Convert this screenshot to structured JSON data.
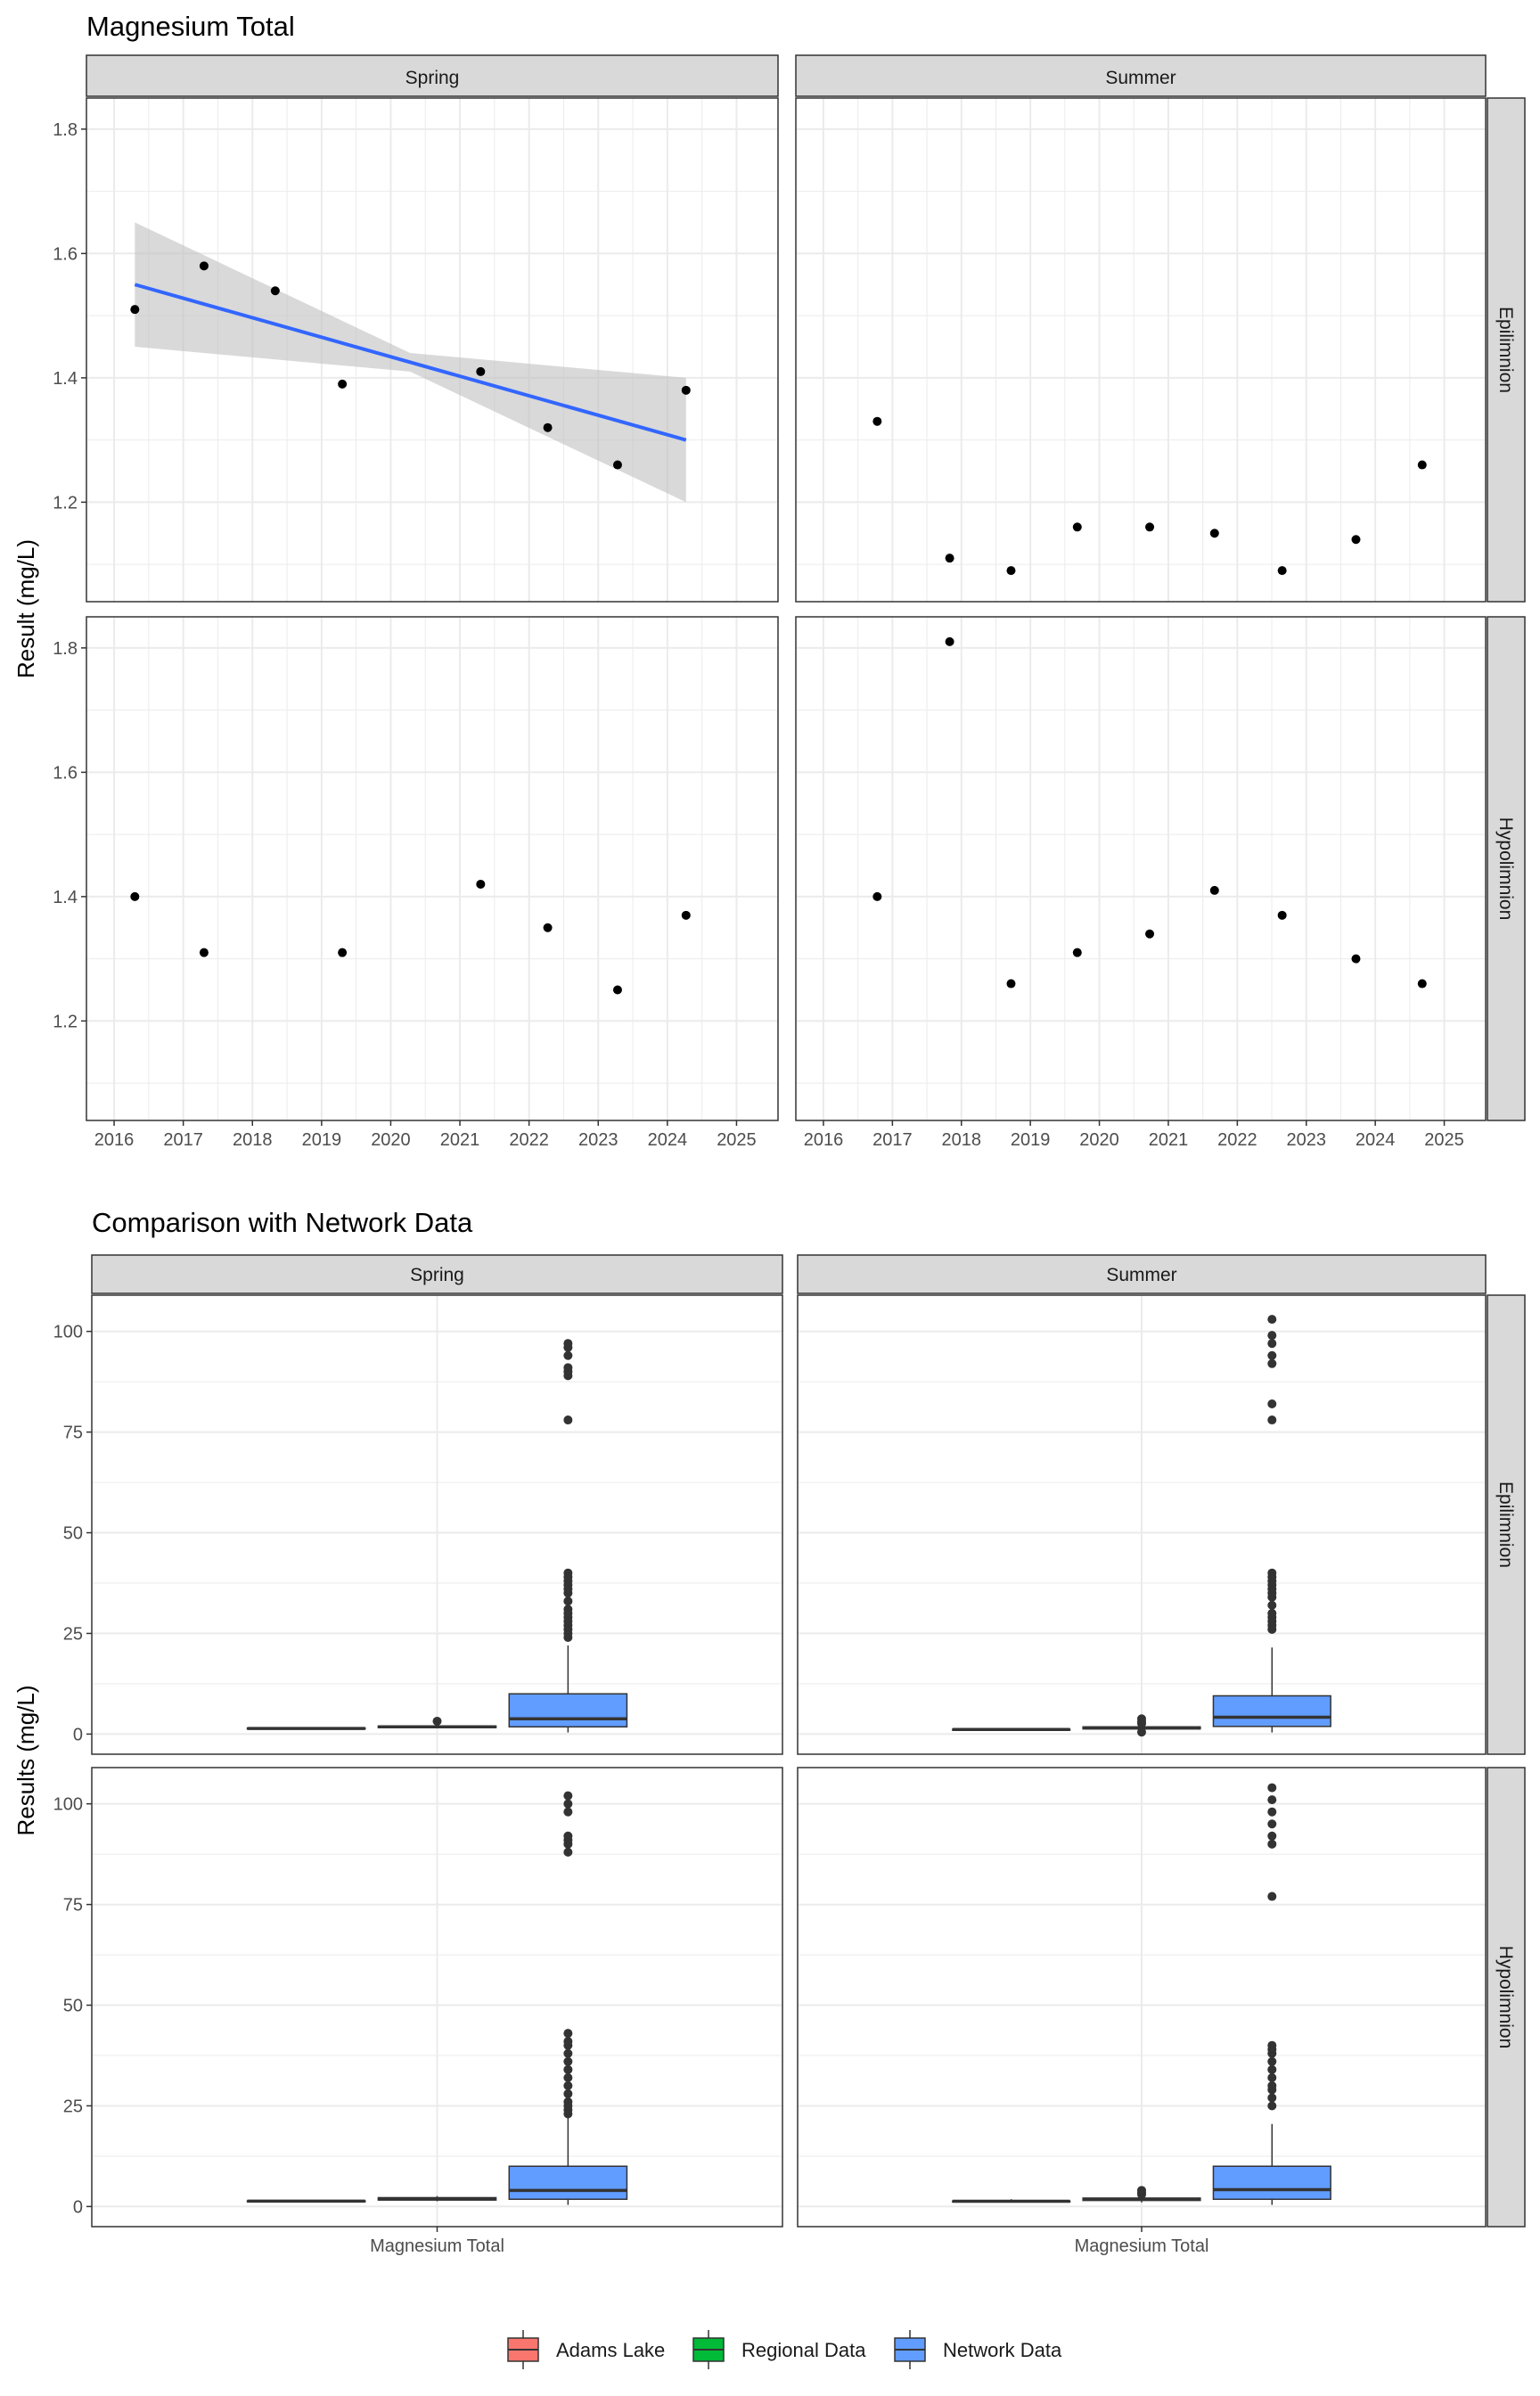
{
  "colors": {
    "panel_bg": "#ffffff",
    "grid": "#ebebeb",
    "strip_bg": "#d9d9d9",
    "border": "#333333",
    "point": "#000000",
    "trend_line": "#3366ff",
    "ribbon": "#bfbfbf",
    "axis_text": "#4d4d4d",
    "box_line": "#333333"
  },
  "chart_data": [
    {
      "type": "scatter",
      "title": "Magnesium Total",
      "ylabel": "Result (mg/L)",
      "xlabel": "",
      "col_facets": [
        "Spring",
        "Summer"
      ],
      "row_facets": [
        "Epilimnion",
        "Hypolimnion"
      ],
      "xlim": [
        2015.6,
        2025.6
      ],
      "ylim": [
        1.04,
        1.85
      ],
      "x_ticks": [
        2016,
        2017,
        2018,
        2019,
        2020,
        2021,
        2022,
        2023,
        2024,
        2025
      ],
      "x_tick_labels": [
        "2016",
        "2017",
        "2018",
        "2019",
        "2020",
        "2021",
        "2022",
        "2023",
        "2024",
        "2025"
      ],
      "y_ticks": [
        1.2,
        1.4,
        1.6,
        1.8
      ],
      "y_tick_labels": [
        "1.2",
        "1.4",
        "1.6",
        "1.8"
      ],
      "panels": [
        {
          "row": "Epilimnion",
          "col": "Spring",
          "points": [
            [
              2016.3,
              1.51
            ],
            [
              2017.3,
              1.58
            ],
            [
              2018.33,
              1.54
            ],
            [
              2019.3,
              1.39
            ],
            [
              2021.3,
              1.41
            ],
            [
              2022.27,
              1.32
            ],
            [
              2023.28,
              1.26
            ],
            [
              2024.27,
              1.38
            ]
          ],
          "trend": {
            "x": [
              2016.3,
              2024.27
            ],
            "y": [
              1.55,
              1.3
            ],
            "ci_lower": [
              1.45,
              1.2
            ],
            "ci_upper": [
              1.65,
              1.4
            ],
            "ci_mid": {
              "x": 2020.28,
              "lower": 1.41,
              "upper": 1.44
            }
          }
        },
        {
          "row": "Epilimnion",
          "col": "Summer",
          "points": [
            [
              2016.78,
              1.33
            ],
            [
              2017.83,
              1.11
            ],
            [
              2018.72,
              1.09
            ],
            [
              2019.68,
              1.16
            ],
            [
              2020.73,
              1.16
            ],
            [
              2021.67,
              1.15
            ],
            [
              2022.65,
              1.09
            ],
            [
              2023.72,
              1.14
            ],
            [
              2024.68,
              1.26
            ]
          ]
        },
        {
          "row": "Hypolimnion",
          "col": "Spring",
          "points": [
            [
              2016.3,
              1.4
            ],
            [
              2017.3,
              1.31
            ],
            [
              2019.3,
              1.31
            ],
            [
              2021.3,
              1.42
            ],
            [
              2022.27,
              1.35
            ],
            [
              2023.28,
              1.25
            ],
            [
              2024.27,
              1.37
            ]
          ]
        },
        {
          "row": "Hypolimnion",
          "col": "Summer",
          "points": [
            [
              2016.78,
              1.4
            ],
            [
              2017.83,
              1.81
            ],
            [
              2018.72,
              1.26
            ],
            [
              2019.68,
              1.31
            ],
            [
              2020.73,
              1.34
            ],
            [
              2021.67,
              1.41
            ],
            [
              2022.65,
              1.37
            ],
            [
              2023.72,
              1.3
            ],
            [
              2024.68,
              1.26
            ]
          ]
        }
      ]
    },
    {
      "type": "box",
      "title": "Comparison with Network Data",
      "ylabel": "Results (mg/L)",
      "xlabel": "",
      "category": "Magnesium Total",
      "col_facets": [
        "Spring",
        "Summer"
      ],
      "row_facets": [
        "Epilimnion",
        "Hypolimnion"
      ],
      "ylim": [
        -5,
        109
      ],
      "y_ticks": [
        0,
        25,
        50,
        75,
        100
      ],
      "y_tick_labels": [
        "0",
        "25",
        "50",
        "75",
        "100"
      ],
      "groups": [
        "Adams Lake",
        "Regional Data",
        "Network Data"
      ],
      "group_colors": [
        "#f8766d",
        "#00ba38",
        "#619cff"
      ],
      "legend_position": "bottom",
      "panels": [
        {
          "row": "Epilimnion",
          "col": "Spring",
          "boxes": [
            {
              "group": "Adams Lake",
              "q1": 1.3,
              "median": 1.4,
              "q3": 1.5,
              "lower": 1.25,
              "upper": 1.58,
              "outliers": []
            },
            {
              "group": "Regional Data",
              "q1": 1.6,
              "median": 1.8,
              "q3": 2.0,
              "lower": 1.4,
              "upper": 2.3,
              "outliers": [
                3.2
              ]
            },
            {
              "group": "Network Data",
              "q1": 1.8,
              "median": 3.8,
              "q3": 10.0,
              "lower": 0.4,
              "upper": 22,
              "outliers": [
                24,
                25,
                26,
                27,
                28,
                29,
                30,
                31,
                33,
                35,
                36,
                37,
                38,
                39,
                40,
                78,
                89,
                90,
                91,
                94,
                96,
                97
              ]
            }
          ]
        },
        {
          "row": "Epilimnion",
          "col": "Summer",
          "boxes": [
            {
              "group": "Adams Lake",
              "q1": 1.1,
              "median": 1.15,
              "q3": 1.2,
              "lower": 1.09,
              "upper": 1.33,
              "outliers": []
            },
            {
              "group": "Regional Data",
              "q1": 1.3,
              "median": 1.5,
              "q3": 1.8,
              "lower": 1.0,
              "upper": 2.2,
              "outliers": [
                0.5,
                2.6,
                3.1,
                3.8
              ]
            },
            {
              "group": "Network Data",
              "q1": 1.9,
              "median": 4.2,
              "q3": 9.5,
              "lower": 0.4,
              "upper": 21.5,
              "outliers": [
                26,
                27,
                28,
                29,
                30,
                32,
                34,
                35,
                36,
                37,
                38,
                39,
                40,
                78,
                82,
                92,
                94,
                97,
                99,
                103
              ]
            }
          ]
        },
        {
          "row": "Hypolimnion",
          "col": "Spring",
          "boxes": [
            {
              "group": "Adams Lake",
              "q1": 1.3,
              "median": 1.35,
              "q3": 1.4,
              "lower": 1.25,
              "upper": 1.42,
              "outliers": []
            },
            {
              "group": "Regional Data",
              "q1": 1.6,
              "median": 1.9,
              "q3": 2.2,
              "lower": 1.3,
              "upper": 2.6,
              "outliers": []
            },
            {
              "group": "Network Data",
              "q1": 1.8,
              "median": 4.0,
              "q3": 10.0,
              "lower": 0.4,
              "upper": 22.5,
              "outliers": [
                23,
                24,
                25,
                26,
                28,
                30,
                32,
                34,
                36,
                38,
                40,
                41,
                43,
                88,
                90,
                91,
                92,
                98,
                100,
                102
              ]
            }
          ]
        },
        {
          "row": "Hypolimnion",
          "col": "Summer",
          "boxes": [
            {
              "group": "Adams Lake",
              "q1": 1.2,
              "median": 1.3,
              "q3": 1.35,
              "lower": 1.2,
              "upper": 1.81,
              "outliers": []
            },
            {
              "group": "Regional Data",
              "q1": 1.5,
              "median": 1.8,
              "q3": 2.1,
              "lower": 1.0,
              "upper": 2.4,
              "outliers": [
                3.0,
                3.5,
                4.0
              ]
            },
            {
              "group": "Network Data",
              "q1": 1.8,
              "median": 4.2,
              "q3": 10.0,
              "lower": 0.4,
              "upper": 20.5,
              "outliers": [
                25,
                27,
                29,
                30,
                32,
                34,
                36,
                38,
                39,
                40,
                77,
                90,
                92,
                95,
                98,
                101,
                104
              ]
            }
          ]
        }
      ]
    }
  ]
}
